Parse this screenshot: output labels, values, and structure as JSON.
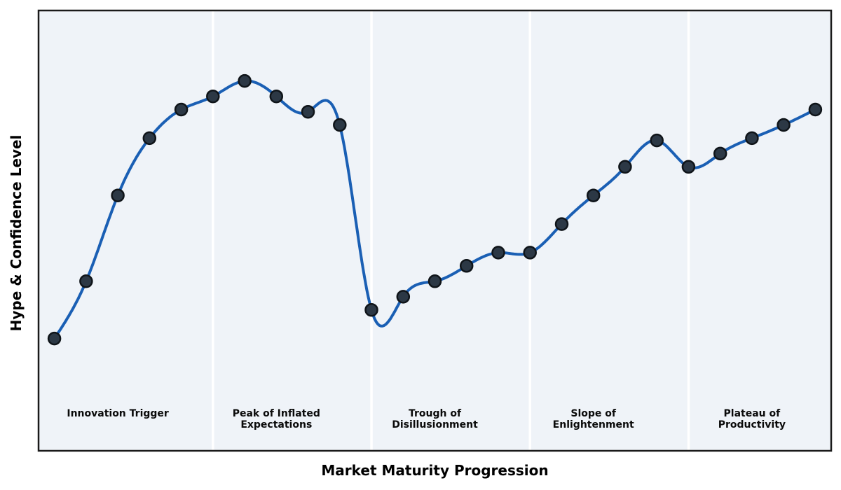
{
  "chart_data": {
    "type": "line",
    "title": "",
    "xlabel": "Market Maturity Progression",
    "ylabel": "Hype & Confidence Level",
    "smoothing": "cubic-spline",
    "markers": true,
    "grid": false,
    "legend": null,
    "xlim": [
      -0.5,
      24.5
    ],
    "ylim": [
      0,
      100
    ],
    "x": [
      0,
      1,
      2,
      3,
      4,
      5,
      6,
      7,
      8,
      9,
      10,
      11,
      12,
      13,
      14,
      15,
      16,
      17,
      18,
      19,
      20,
      21,
      22,
      23,
      24
    ],
    "values": [
      25.5,
      38.5,
      58,
      71,
      77.5,
      80.5,
      84,
      80.5,
      77,
      74,
      32,
      35,
      38.5,
      42,
      45,
      45,
      51.5,
      58,
      64.5,
      70.5,
      64.5,
      67.5,
      71,
      74,
      77.5
    ],
    "phases": [
      {
        "name": "innovation-trigger",
        "line1": "Innovation Trigger",
        "line2": "",
        "start": -0.5,
        "end": 5,
        "label_x": 2
      },
      {
        "name": "peak-of-inflated-expectations",
        "line1": "Peak of Inflated",
        "line2": "Expectations",
        "start": 5,
        "end": 10,
        "label_x": 7
      },
      {
        "name": "trough-of-disillusionment",
        "line1": "Trough of",
        "line2": "Disillusionment",
        "start": 10,
        "end": 15,
        "label_x": 12
      },
      {
        "name": "slope-of-enlightenment",
        "line1": "Slope of",
        "line2": "Enlightenment",
        "start": 15,
        "end": 20,
        "label_x": 17
      },
      {
        "name": "plateau-of-productivity",
        "line1": "Plateau of",
        "line2": "Productivity",
        "start": 20,
        "end": 24.5,
        "label_x": 22
      }
    ],
    "colors": {
      "line": "#1a5fb4",
      "marker_fill": "#2c3845",
      "marker_edge": "#0f1419",
      "band_background": "#eff3f8",
      "divider": "#ffffff",
      "border": "#1a1a1a",
      "label_text": "#0a0a0a",
      "figure_background": "#ffffff"
    }
  }
}
